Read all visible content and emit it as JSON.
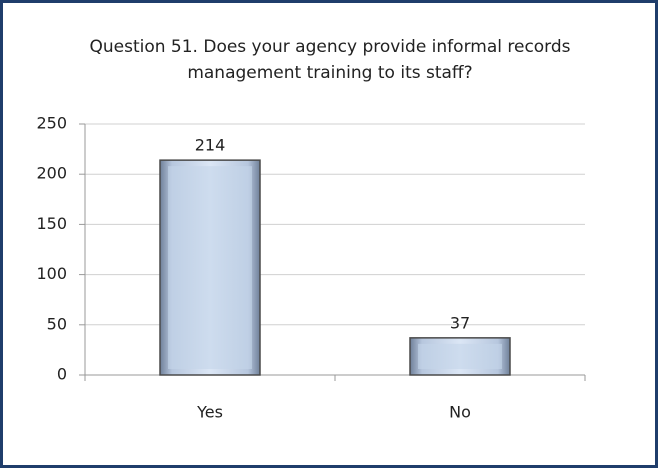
{
  "chart_data": {
    "type": "bar",
    "title": "Question 51.  Does your agency provide informal records management training to its staff?",
    "categories": [
      "Yes",
      "No"
    ],
    "values": [
      214,
      37
    ],
    "color": "#c5d5ea",
    "ylim": [
      0,
      250
    ],
    "yticks": [
      0,
      50,
      100,
      150,
      200,
      250
    ],
    "grid": true
  }
}
